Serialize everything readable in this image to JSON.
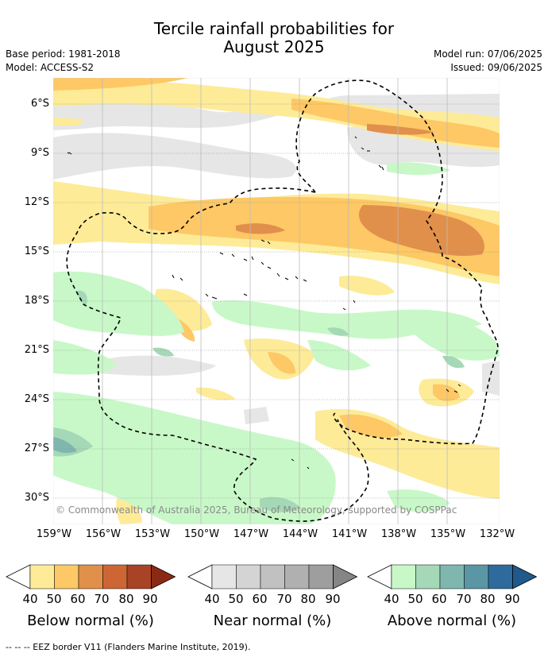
{
  "header": {
    "title_line1": "Tercile rainfall probabilities for",
    "title_line2": "August 2025",
    "base_period": "Base period: 1981-2018",
    "model": "Model: ACCESS-S2",
    "model_run": "Model run: 07/06/2025",
    "issued": "Issued: 09/06/2025"
  },
  "map": {
    "lat_labels": [
      "6°S",
      "9°S",
      "12°S",
      "15°S",
      "18°S",
      "21°S",
      "24°S",
      "27°S",
      "30°S"
    ],
    "lon_labels": [
      "159°W",
      "156°W",
      "153°W",
      "150°W",
      "147°W",
      "144°W",
      "141°W",
      "138°W",
      "135°W",
      "132°W"
    ],
    "copyright": "© Commonwealth of Australia 2025, Bureau of Meteorology, supported by COSPPac"
  },
  "legend": {
    "ticks": [
      "40",
      "50",
      "60",
      "70",
      "80",
      "90"
    ],
    "below": {
      "title": "Below normal (%)",
      "colors": [
        "#fdeb98",
        "#fdc865",
        "#e0904a",
        "#cd6634",
        "#a84325",
        "#8b2a14"
      ]
    },
    "near": {
      "title": "Near normal (%)",
      "colors": [
        "#e6e6e6",
        "#d4d4d4",
        "#c1c1c1",
        "#b0b0b0",
        "#9e9e9e",
        "#858585"
      ]
    },
    "above": {
      "title": "Above normal (%)",
      "colors": [
        "#c8f8c8",
        "#a5d8b6",
        "#7fb7ae",
        "#5a96a4",
        "#2f6a9c",
        "#205a8c"
      ]
    }
  },
  "footer": {
    "eez_note": "--  --  -- EEZ border V11 (Flanders Marine Institute, 2019)."
  }
}
